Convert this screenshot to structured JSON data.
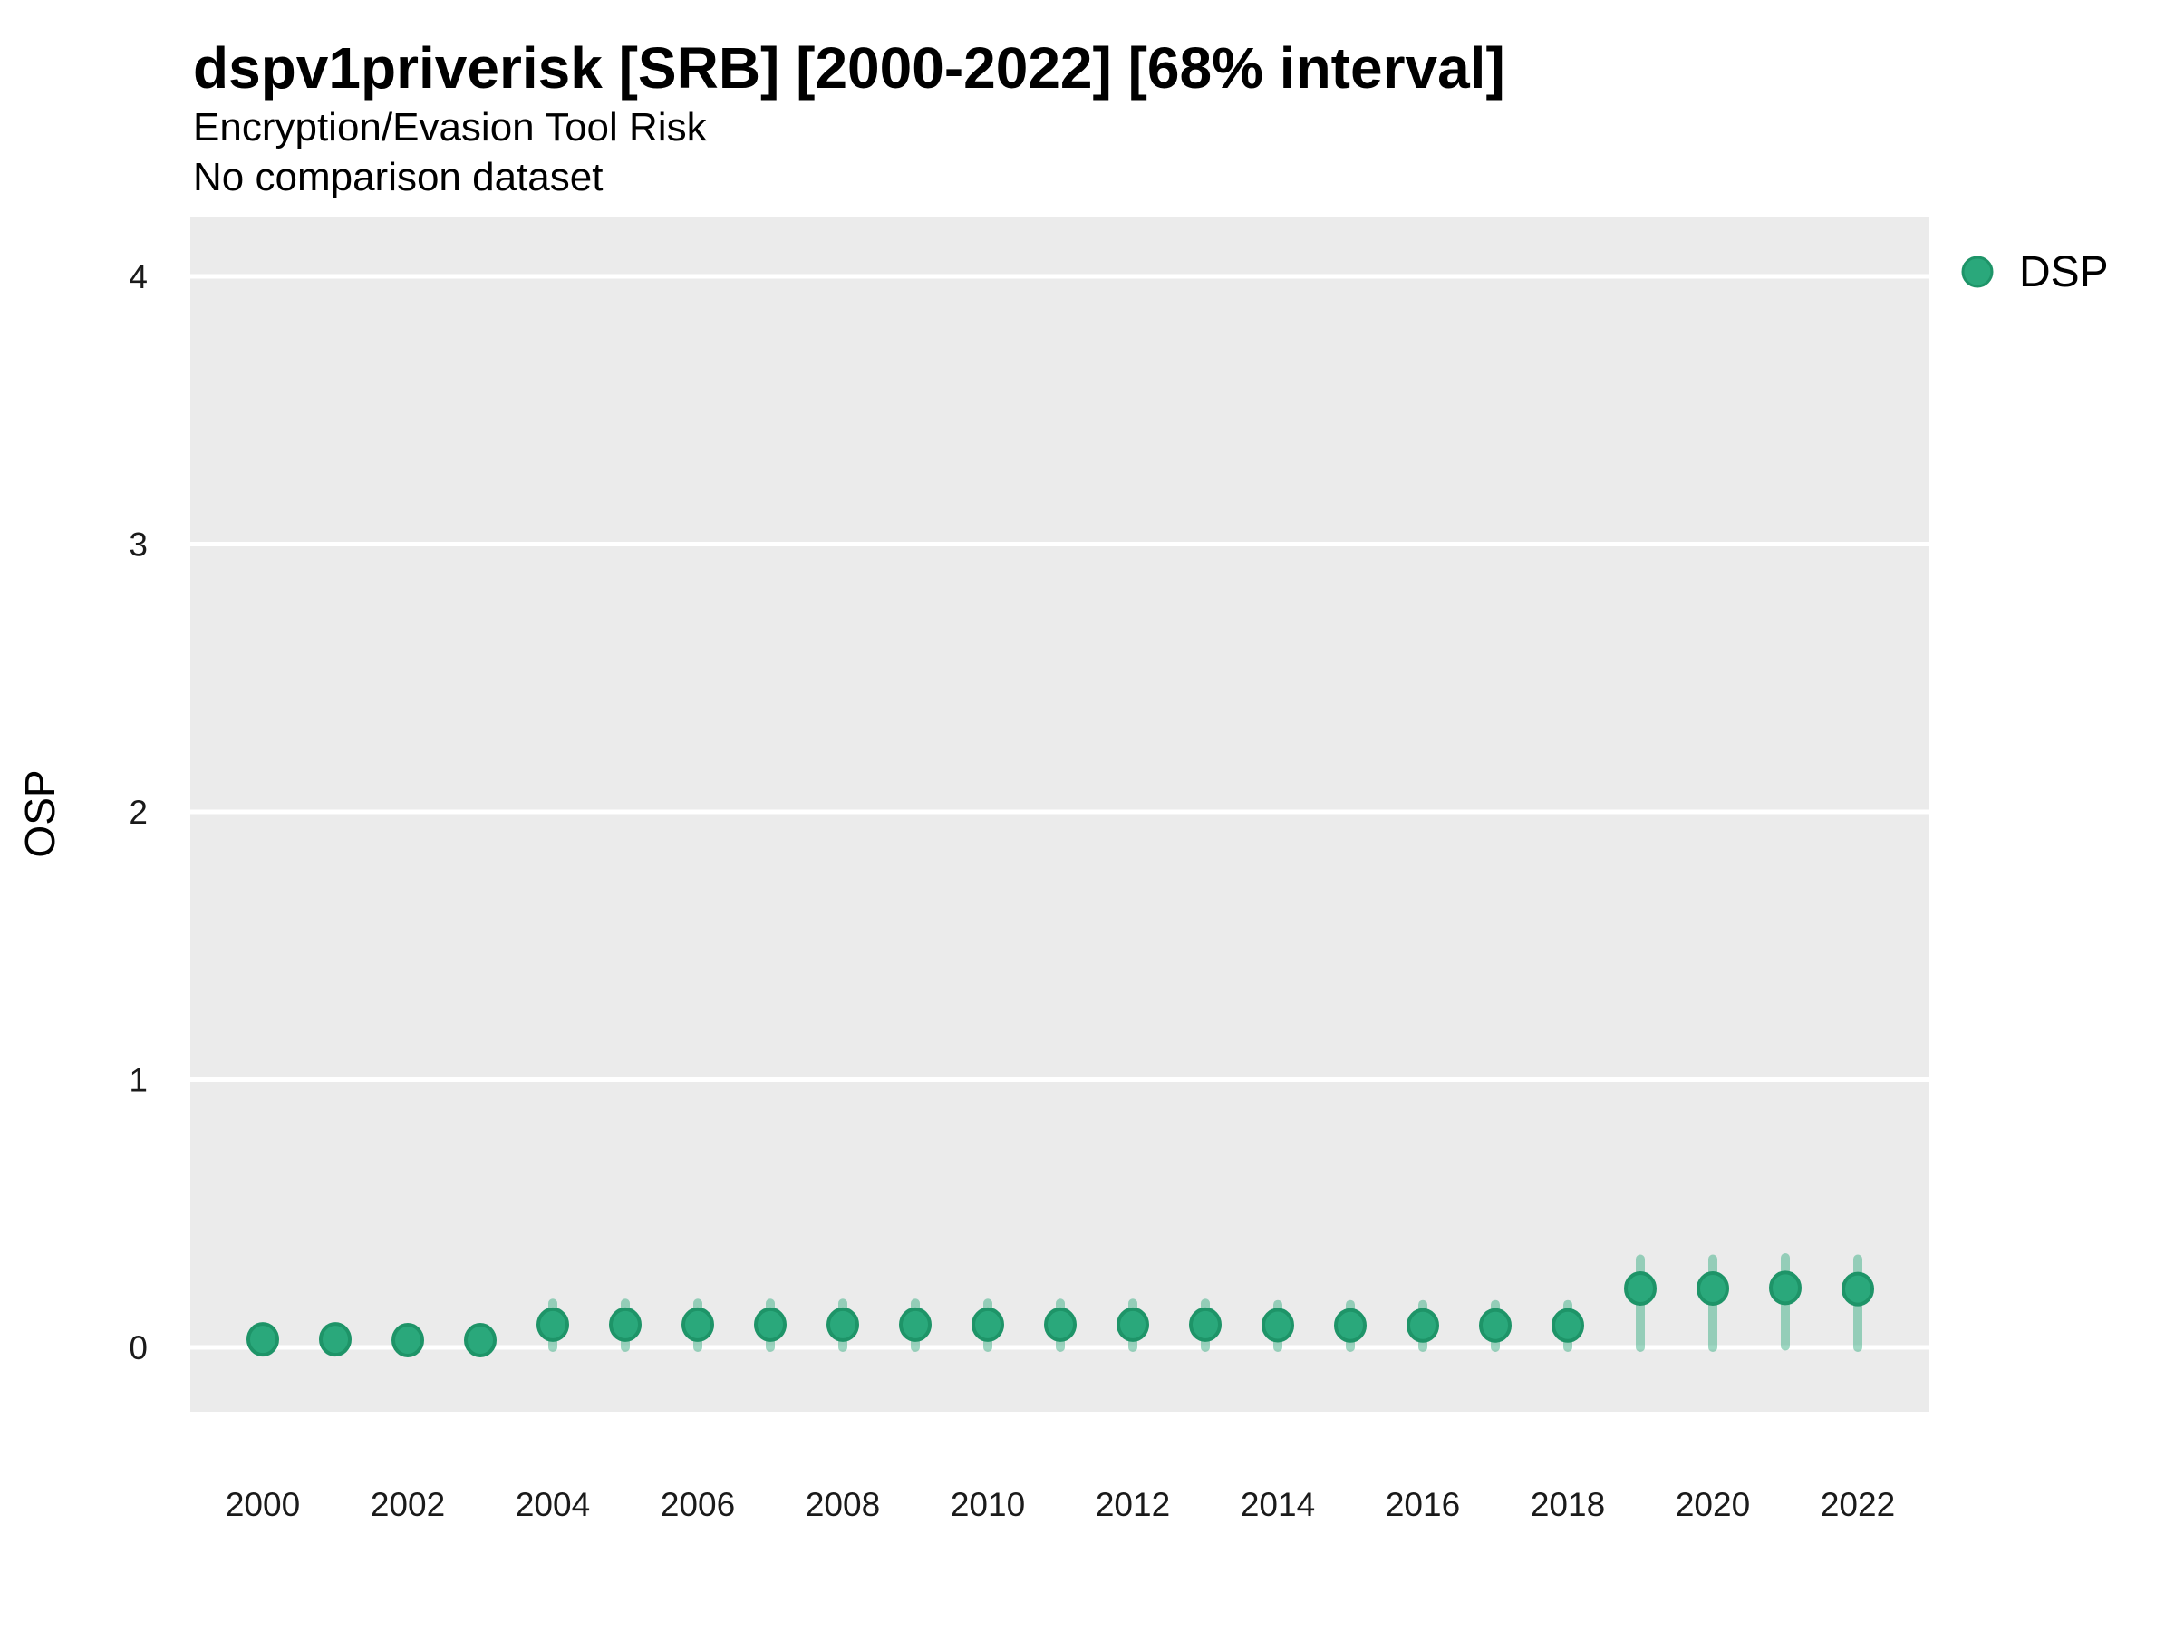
{
  "header": {
    "title": "dspv1priverisk [SRB] [2000-2022] [68% interval]",
    "subtitle": "Encryption/Evasion Tool Risk",
    "subtitle2": "No comparison dataset"
  },
  "chart_data": {
    "type": "scatter",
    "subtype": "pointrange",
    "title": "dspv1priverisk [SRB] [2000-2022] [68% interval]",
    "subtitle": "Encryption/Evasion Tool Risk",
    "annotation": "No comparison dataset",
    "interval": "68%",
    "xlabel": "",
    "ylabel": "OSP",
    "xlim": [
      1999,
      2023
    ],
    "ylim": [
      -0.25,
      4.22
    ],
    "x_ticks": [
      2000,
      2002,
      2004,
      2006,
      2008,
      2010,
      2012,
      2014,
      2016,
      2018,
      2020,
      2022
    ],
    "y_ticks": [
      0,
      1,
      2,
      3,
      4
    ],
    "grid": "horizontal-major-only",
    "legend": {
      "label": "DSP",
      "position": "top-right"
    },
    "series": [
      {
        "name": "DSP",
        "x": [
          2000,
          2001,
          2002,
          2003,
          2004,
          2005,
          2006,
          2007,
          2008,
          2009,
          2010,
          2011,
          2012,
          2013,
          2014,
          2015,
          2016,
          2017,
          2018,
          2019,
          2020,
          2021,
          2022
        ],
        "y": [
          0.03,
          0.03,
          0.027,
          0.027,
          0.085,
          0.085,
          0.085,
          0.085,
          0.085,
          0.085,
          0.085,
          0.085,
          0.085,
          0.085,
          0.083,
          0.082,
          0.082,
          0.082,
          0.082,
          0.22,
          0.22,
          0.222,
          0.218
        ],
        "y_lo": [
          0.0,
          0.0,
          0.0,
          0.0,
          0.0,
          0.0,
          0.0,
          0.0,
          0.0,
          0.0,
          0.0,
          0.0,
          0.0,
          0.0,
          0.0,
          0.0,
          0.0,
          0.0,
          0.0,
          0.0,
          0.0,
          0.005,
          0.0
        ],
        "y_hi": [
          0.06,
          0.06,
          0.06,
          0.06,
          0.165,
          0.165,
          0.165,
          0.165,
          0.165,
          0.165,
          0.165,
          0.165,
          0.165,
          0.165,
          0.16,
          0.16,
          0.16,
          0.16,
          0.16,
          0.33,
          0.33,
          0.335,
          0.33
        ]
      }
    ]
  },
  "colors": {
    "point_fill": "#2aa87b",
    "point_stroke": "#1e9468",
    "error_bar": "rgba(42,168,123,0.45)",
    "panel_bg": "#ebebeb",
    "gridline": "#ffffff",
    "tick_text": "#1a1a1a",
    "title_text": "#000000"
  }
}
